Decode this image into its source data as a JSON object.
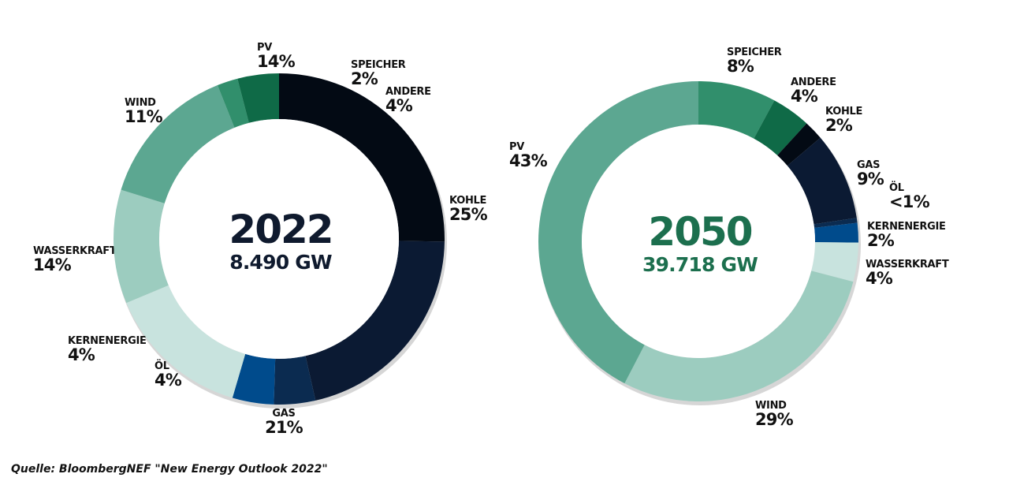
{
  "chart_data": [
    {
      "type": "pie",
      "center_year": "2022",
      "center_total": "8.490 GW",
      "center_color": "#0f1a2e",
      "slices": [
        {
          "name": "KOHLE",
          "label": "25%",
          "value": 25,
          "color": "#030a14"
        },
        {
          "name": "GAS",
          "label": "21%",
          "value": 21,
          "color": "#0b1a33"
        },
        {
          "name": "ÖL",
          "label": "4%",
          "value": 4,
          "color": "#0b2b50"
        },
        {
          "name": "KERNENERGIE",
          "label": "4%",
          "value": 4,
          "color": "#004b8c"
        },
        {
          "name": "WASSERKRAFT",
          "label": "14%",
          "value": 14,
          "color": "#c8e3de"
        },
        {
          "name": "WIND",
          "label": "11%",
          "value": 11,
          "color": "#9cccbf"
        },
        {
          "name": "PV",
          "label": "14%",
          "value": 14,
          "color": "#5ca791"
        },
        {
          "name": "SPEICHER",
          "label": "2%",
          "value": 2,
          "color": "#318f6c"
        },
        {
          "name": "ANDERE",
          "label": "4%",
          "value": 4,
          "color": "#0f6a47"
        }
      ]
    },
    {
      "type": "pie",
      "center_year": "2050",
      "center_total": "39.718 GW",
      "center_color": "#1c6f4e",
      "slices": [
        {
          "name": "SPEICHER",
          "label": "8%",
          "value": 8,
          "color": "#318f6c"
        },
        {
          "name": "ANDERE",
          "label": "4%",
          "value": 4,
          "color": "#0f6a47"
        },
        {
          "name": "KOHLE",
          "label": "2%",
          "value": 2,
          "color": "#030a14"
        },
        {
          "name": "GAS",
          "label": "9%",
          "value": 9,
          "color": "#0b1a33"
        },
        {
          "name": "ÖL",
          "label": "<1%",
          "value": 0.5,
          "color": "#0b2b50"
        },
        {
          "name": "KERNENERGIE",
          "label": "2%",
          "value": 2,
          "color": "#004b8c"
        },
        {
          "name": "WASSERKRAFT",
          "label": "4%",
          "value": 4,
          "color": "#c8e3de"
        },
        {
          "name": "WIND",
          "label": "29%",
          "value": 29,
          "color": "#9cccbf"
        },
        {
          "name": "PV",
          "label": "43%",
          "value": 43,
          "color": "#5ca791"
        }
      ]
    }
  ],
  "source": "Quelle: BloombergNEF \"New Energy Outlook 2022\""
}
